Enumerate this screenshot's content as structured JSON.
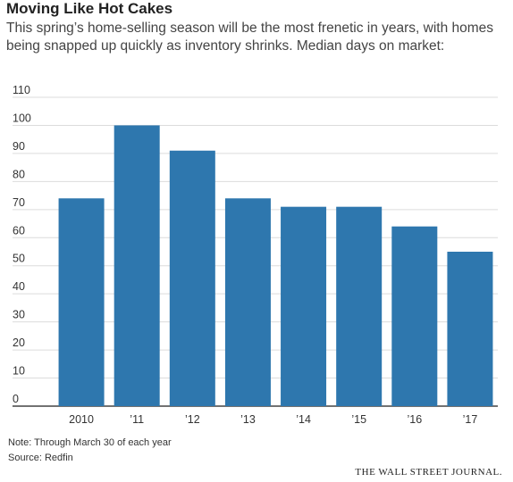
{
  "header": {
    "title": "Moving Like Hot Cakes",
    "subtitle": "This spring’s home-selling season will be the most frenetic in years, with homes being snapped up quickly as inventory shrinks. Median days on market:"
  },
  "footer": {
    "note": "Note: Through March 30 of each year",
    "source": "Source: Redfin",
    "brand": "THE WALL STREET JOURNAL."
  },
  "chart_data": {
    "type": "bar",
    "categories": [
      "2010",
      "’11",
      "’12",
      "’13",
      "’14",
      "’15",
      "’16",
      "’17"
    ],
    "values": [
      74,
      100,
      91,
      74,
      71,
      71,
      64,
      55
    ],
    "y_ticks": [
      0,
      10,
      20,
      30,
      40,
      50,
      60,
      70,
      80,
      90,
      100,
      110
    ],
    "ylim": [
      0,
      110
    ],
    "grid": true,
    "legend": "none",
    "bar_color": "#2e77ae",
    "grid_color": "#dcdcdc",
    "axis_color": "#444444"
  }
}
